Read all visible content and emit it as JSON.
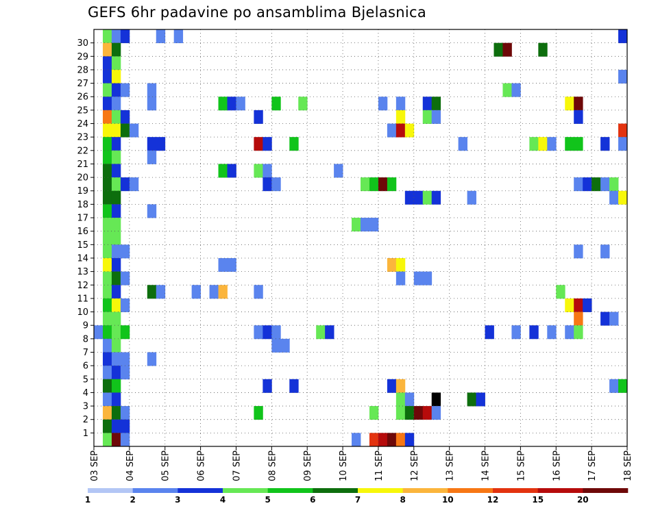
{
  "chart_data": {
    "type": "heatmap",
    "title": "GEFS 6hr padavine po ansamblima Bjelasnica",
    "x_ticks": [
      "03 SEP",
      "04 SEP",
      "05 SEP",
      "06 SEP",
      "07 SEP",
      "08 SEP",
      "09 SEP",
      "10 SEP",
      "11 SEP",
      "12 SEP",
      "13 SEP",
      "14 SEP",
      "15 SEP",
      "16 SEP",
      "17 SEP",
      "18 SEP"
    ],
    "y_ticks": [
      "1",
      "2",
      "3",
      "4",
      "5",
      "6",
      "7",
      "8",
      "9",
      "10",
      "11",
      "12",
      "13",
      "14",
      "15",
      "16",
      "17",
      "18",
      "19",
      "20",
      "21",
      "22",
      "23",
      "24",
      "25",
      "26",
      "27",
      "28",
      "29",
      "30"
    ],
    "time_steps": 60,
    "members": 31,
    "grid": true,
    "colorbar": {
      "levels": [
        "1",
        "2",
        "3",
        "4",
        "5",
        "6",
        "7",
        "8",
        "10",
        "12",
        "15",
        "20"
      ],
      "colors": [
        "#b3c6f5",
        "#5a84ee",
        "#1432d8",
        "#66e855",
        "#11c41b",
        "#0d6e0d",
        "#f7f70a",
        "#fbb53c",
        "#f77714",
        "#e3330f",
        "#b60b0b",
        "#6e0808"
      ]
    },
    "cells": [
      [
        1,
        30,
        3
      ],
      [
        2,
        30,
        1
      ],
      [
        3,
        30,
        2
      ],
      [
        7,
        30,
        1
      ],
      [
        9,
        30,
        1
      ],
      [
        59,
        30,
        2
      ],
      [
        1,
        29,
        7
      ],
      [
        2,
        29,
        5
      ],
      [
        45,
        29,
        5
      ],
      [
        46,
        29,
        11
      ],
      [
        50,
        29,
        5
      ],
      [
        1,
        28,
        2
      ],
      [
        2,
        28,
        3
      ],
      [
        1,
        27,
        2
      ],
      [
        2,
        27,
        6
      ],
      [
        59,
        27,
        1
      ],
      [
        1,
        26,
        3
      ],
      [
        2,
        26,
        2
      ],
      [
        3,
        26,
        1
      ],
      [
        6,
        26,
        1
      ],
      [
        46,
        26,
        3
      ],
      [
        47,
        26,
        1
      ],
      [
        1,
        25,
        2
      ],
      [
        2,
        25,
        1
      ],
      [
        6,
        25,
        1
      ],
      [
        14,
        25,
        4
      ],
      [
        15,
        25,
        2
      ],
      [
        16,
        25,
        1
      ],
      [
        20,
        25,
        4
      ],
      [
        23,
        25,
        3
      ],
      [
        32,
        25,
        1
      ],
      [
        34,
        25,
        1
      ],
      [
        37,
        25,
        2
      ],
      [
        38,
        25,
        5
      ],
      [
        53,
        25,
        6
      ],
      [
        54,
        25,
        11
      ],
      [
        1,
        24,
        8
      ],
      [
        2,
        24,
        3
      ],
      [
        3,
        24,
        2
      ],
      [
        18,
        24,
        2
      ],
      [
        34,
        24,
        6
      ],
      [
        37,
        24,
        3
      ],
      [
        38,
        24,
        1
      ],
      [
        54,
        24,
        2
      ],
      [
        1,
        23,
        6
      ],
      [
        2,
        23,
        6
      ],
      [
        3,
        23,
        5
      ],
      [
        4,
        23,
        1
      ],
      [
        33,
        23,
        1
      ],
      [
        34,
        23,
        10
      ],
      [
        35,
        23,
        6
      ],
      [
        59,
        23,
        9
      ],
      [
        1,
        22,
        4
      ],
      [
        2,
        22,
        2
      ],
      [
        6,
        22,
        2
      ],
      [
        7,
        22,
        2
      ],
      [
        18,
        22,
        10
      ],
      [
        19,
        22,
        2
      ],
      [
        22,
        22,
        4
      ],
      [
        41,
        22,
        1
      ],
      [
        49,
        22,
        3
      ],
      [
        50,
        22,
        6
      ],
      [
        51,
        22,
        1
      ],
      [
        53,
        22,
        4
      ],
      [
        54,
        22,
        4
      ],
      [
        57,
        22,
        2
      ],
      [
        59,
        22,
        1
      ],
      [
        1,
        21,
        4
      ],
      [
        2,
        21,
        3
      ],
      [
        6,
        21,
        1
      ],
      [
        1,
        20,
        5
      ],
      [
        2,
        20,
        2
      ],
      [
        14,
        20,
        4
      ],
      [
        15,
        20,
        2
      ],
      [
        18,
        20,
        3
      ],
      [
        19,
        20,
        1
      ],
      [
        27,
        20,
        1
      ],
      [
        1,
        19,
        5
      ],
      [
        2,
        19,
        3
      ],
      [
        3,
        19,
        2
      ],
      [
        4,
        19,
        1
      ],
      [
        19,
        19,
        2
      ],
      [
        20,
        19,
        1
      ],
      [
        30,
        19,
        3
      ],
      [
        31,
        19,
        4
      ],
      [
        32,
        19,
        11
      ],
      [
        33,
        19,
        4
      ],
      [
        54,
        19,
        1
      ],
      [
        55,
        19,
        2
      ],
      [
        56,
        19,
        5
      ],
      [
        57,
        19,
        1
      ],
      [
        58,
        19,
        3
      ],
      [
        1,
        18,
        5
      ],
      [
        2,
        18,
        5
      ],
      [
        35,
        18,
        2
      ],
      [
        36,
        18,
        2
      ],
      [
        37,
        18,
        3
      ],
      [
        38,
        18,
        2
      ],
      [
        42,
        18,
        1
      ],
      [
        58,
        18,
        1
      ],
      [
        59,
        18,
        6
      ],
      [
        1,
        17,
        4
      ],
      [
        2,
        17,
        2
      ],
      [
        6,
        17,
        1
      ],
      [
        1,
        16,
        3
      ],
      [
        2,
        16,
        3
      ],
      [
        29,
        16,
        3
      ],
      [
        30,
        16,
        1
      ],
      [
        31,
        16,
        1
      ],
      [
        1,
        15,
        3
      ],
      [
        2,
        15,
        3
      ],
      [
        1,
        14,
        3
      ],
      [
        2,
        14,
        1
      ],
      [
        3,
        14,
        1
      ],
      [
        54,
        14,
        1
      ],
      [
        57,
        14,
        1
      ],
      [
        1,
        13,
        6
      ],
      [
        2,
        13,
        2
      ],
      [
        14,
        13,
        1
      ],
      [
        15,
        13,
        1
      ],
      [
        33,
        13,
        7
      ],
      [
        34,
        13,
        6
      ],
      [
        1,
        12,
        3
      ],
      [
        2,
        12,
        5
      ],
      [
        3,
        12,
        1
      ],
      [
        34,
        12,
        1
      ],
      [
        36,
        12,
        1
      ],
      [
        37,
        12,
        1
      ],
      [
        1,
        11,
        3
      ],
      [
        2,
        11,
        2
      ],
      [
        6,
        11,
        5
      ],
      [
        7,
        11,
        1
      ],
      [
        11,
        11,
        1
      ],
      [
        13,
        11,
        1
      ],
      [
        14,
        11,
        7
      ],
      [
        18,
        11,
        1
      ],
      [
        52,
        11,
        3
      ],
      [
        1,
        10,
        4
      ],
      [
        2,
        10,
        6
      ],
      [
        3,
        10,
        1
      ],
      [
        53,
        10,
        6
      ],
      [
        54,
        10,
        10
      ],
      [
        55,
        10,
        2
      ],
      [
        1,
        9,
        3
      ],
      [
        2,
        9,
        3
      ],
      [
        54,
        9,
        8
      ],
      [
        57,
        9,
        2
      ],
      [
        58,
        9,
        1
      ],
      [
        0,
        8,
        1
      ],
      [
        1,
        8,
        4
      ],
      [
        2,
        8,
        3
      ],
      [
        3,
        8,
        4
      ],
      [
        18,
        8,
        1
      ],
      [
        19,
        8,
        2
      ],
      [
        20,
        8,
        1
      ],
      [
        25,
        8,
        3
      ],
      [
        26,
        8,
        2
      ],
      [
        44,
        8,
        2
      ],
      [
        47,
        8,
        1
      ],
      [
        49,
        8,
        2
      ],
      [
        51,
        8,
        1
      ],
      [
        53,
        8,
        1
      ],
      [
        54,
        8,
        3
      ],
      [
        1,
        7,
        1
      ],
      [
        2,
        7,
        3
      ],
      [
        20,
        7,
        1
      ],
      [
        21,
        7,
        1
      ],
      [
        1,
        6,
        2
      ],
      [
        2,
        6,
        1
      ],
      [
        3,
        6,
        1
      ],
      [
        6,
        6,
        1
      ],
      [
        1,
        5,
        1
      ],
      [
        2,
        5,
        2
      ],
      [
        3,
        5,
        1
      ],
      [
        1,
        4,
        5
      ],
      [
        2,
        4,
        4
      ],
      [
        19,
        4,
        2
      ],
      [
        22,
        4,
        2
      ],
      [
        33,
        4,
        2
      ],
      [
        34,
        4,
        7
      ],
      [
        58,
        4,
        1
      ],
      [
        59,
        4,
        4
      ],
      [
        1,
        3,
        1
      ],
      [
        2,
        3,
        2
      ],
      [
        34,
        3,
        3
      ],
      [
        35,
        3,
        1
      ],
      [
        38,
        3,
        12
      ],
      [
        42,
        3,
        5
      ],
      [
        43,
        3,
        2
      ],
      [
        1,
        2,
        7
      ],
      [
        2,
        2,
        5
      ],
      [
        3,
        2,
        1
      ],
      [
        18,
        2,
        4
      ],
      [
        31,
        2,
        3
      ],
      [
        34,
        2,
        3
      ],
      [
        35,
        2,
        5
      ],
      [
        36,
        2,
        11
      ],
      [
        37,
        2,
        10
      ],
      [
        38,
        2,
        1
      ],
      [
        1,
        1,
        5
      ],
      [
        2,
        1,
        2
      ],
      [
        3,
        1,
        2
      ],
      [
        1,
        0,
        3
      ],
      [
        2,
        0,
        11
      ],
      [
        3,
        0,
        1
      ],
      [
        29,
        0,
        1
      ],
      [
        31,
        0,
        9
      ],
      [
        32,
        0,
        10
      ],
      [
        33,
        0,
        11
      ],
      [
        34,
        0,
        8
      ],
      [
        35,
        0,
        2
      ]
    ]
  }
}
